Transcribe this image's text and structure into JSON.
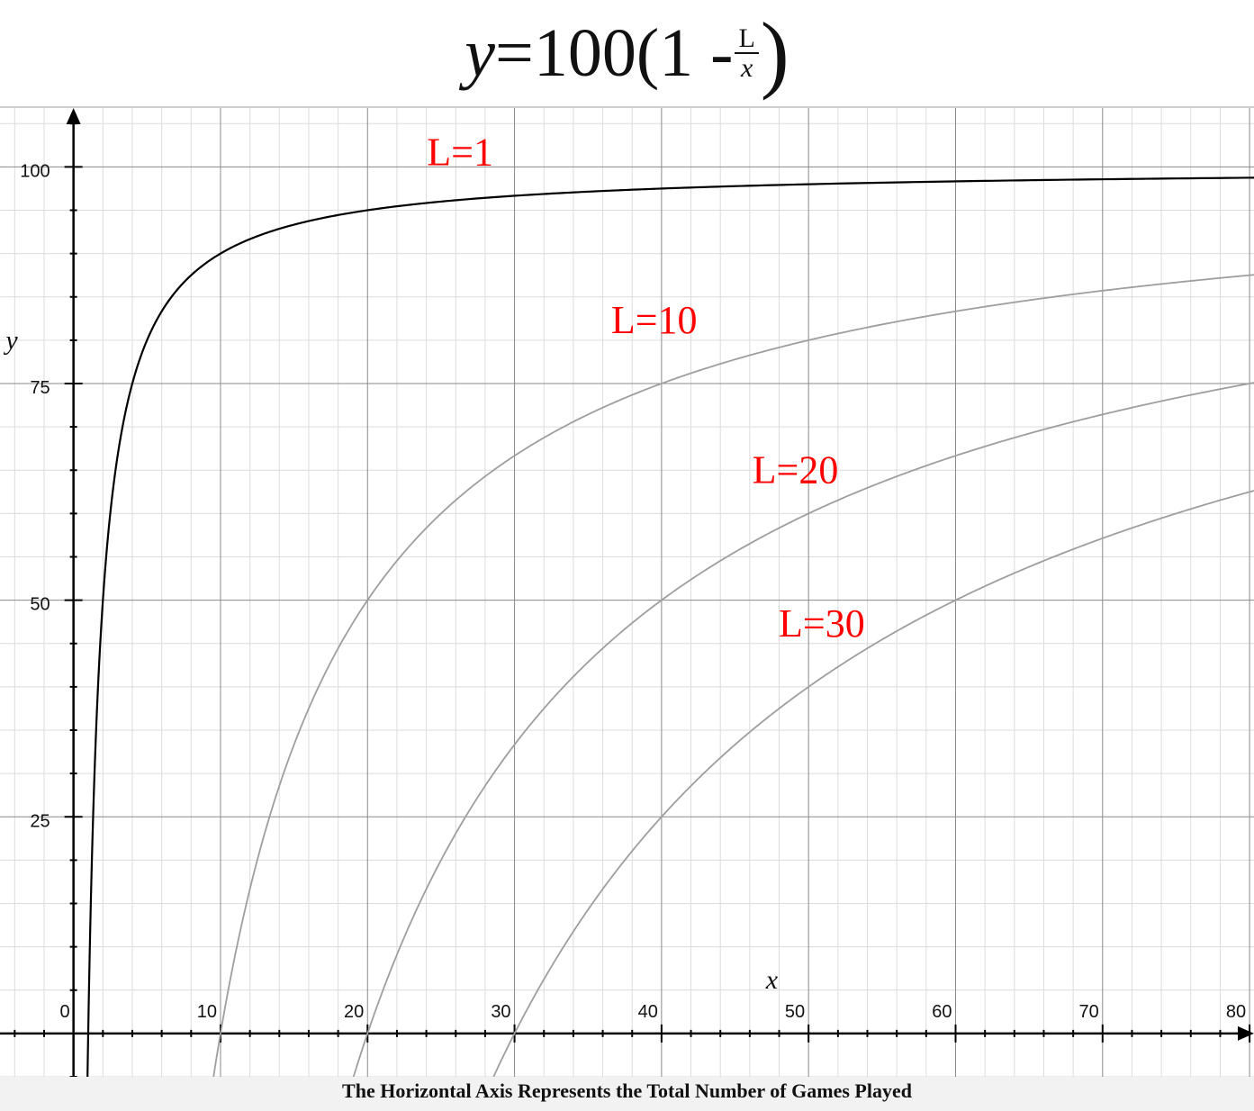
{
  "title": {
    "lhs": "y",
    "equals": "=100(1 -",
    "frac_num": "L",
    "frac_den": "x",
    "close": ")"
  },
  "x_caption": "The Horizontal Axis Represents the Total Number of Games Played",
  "chart_data": {
    "type": "line",
    "title": "y=100(1 - L/x)",
    "xlabel": "x",
    "ylabel": "y",
    "xlim": [
      -5,
      80.3
    ],
    "ylim": [
      -5,
      107
    ],
    "x_ticks": [
      0,
      10,
      20,
      30,
      40,
      50,
      60,
      70,
      80
    ],
    "x_tick_labels": [
      "0",
      "10",
      "20",
      "30",
      "40",
      "50",
      "60",
      "70",
      "80"
    ],
    "y_ticks": [
      25,
      50,
      75,
      100
    ],
    "y_tick_labels": [
      "25",
      "50",
      "75",
      "100"
    ],
    "grid": true,
    "formula": "y = 100 * (1 - L / x)",
    "series": [
      {
        "name": "L=1",
        "L": 1,
        "color": "#000000",
        "label_x": 26.3,
        "label_y": 100.2
      },
      {
        "name": "L=10",
        "L": 10,
        "color": "#9e9e9e",
        "label_x": 39.5,
        "label_y": 80.8
      },
      {
        "name": "L=20",
        "L": 20,
        "color": "#9e9e9e",
        "label_x": 49.1,
        "label_y": 63.5
      },
      {
        "name": "L=30",
        "L": 30,
        "color": "#9e9e9e",
        "label_x": 50.9,
        "label_y": 45.8
      }
    ],
    "label_color": "#ff0000"
  }
}
